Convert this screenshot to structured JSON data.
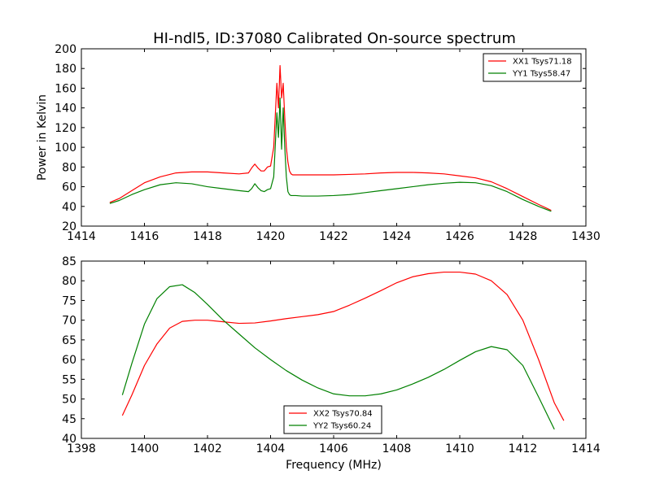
{
  "chart_data": [
    {
      "type": "line",
      "title": "HI-ndl5, ID:37080 Calibrated On-source spectrum",
      "xlabel": "",
      "ylabel": "Power in Kelvin",
      "xlim": [
        1414,
        1430
      ],
      "ylim": [
        20,
        200
      ],
      "xticks": [
        1414,
        1416,
        1418,
        1420,
        1422,
        1424,
        1426,
        1428,
        1430
      ],
      "yticks": [
        20,
        40,
        60,
        80,
        100,
        120,
        140,
        160,
        180,
        200
      ],
      "grid": false,
      "legend": "top-right",
      "series": [
        {
          "name": "XX1 Tsys71.18",
          "color": "#ff0000",
          "x": [
            1414.9,
            1415.2,
            1415.6,
            1416.0,
            1416.5,
            1417.0,
            1417.5,
            1418.0,
            1418.5,
            1419.0,
            1419.3,
            1419.4,
            1419.5,
            1419.6,
            1419.7,
            1419.8,
            1419.9,
            1420.0,
            1420.1,
            1420.2,
            1420.25,
            1420.3,
            1420.35,
            1420.4,
            1420.45,
            1420.5,
            1420.55,
            1420.6,
            1420.65,
            1420.7,
            1420.8,
            1421.0,
            1421.5,
            1422.0,
            1422.5,
            1423.0,
            1423.5,
            1424.0,
            1424.5,
            1425.0,
            1425.5,
            1426.0,
            1426.5,
            1427.0,
            1427.5,
            1428.0,
            1428.5,
            1428.9
          ],
          "y": [
            44,
            48,
            56,
            64,
            70,
            74,
            75,
            75,
            74,
            73,
            74,
            79,
            83,
            79,
            76,
            76,
            80,
            81,
            100,
            165,
            140,
            183,
            150,
            165,
            130,
            100,
            85,
            76,
            73,
            72,
            72,
            72,
            72,
            72,
            72.5,
            73,
            74,
            74.5,
            74.5,
            74,
            73,
            71,
            69,
            65,
            58,
            50,
            42,
            36
          ]
        },
        {
          "name": "YY1 Tsys58.47",
          "color": "#008000",
          "x": [
            1414.9,
            1415.2,
            1415.6,
            1416.0,
            1416.5,
            1417.0,
            1417.5,
            1418.0,
            1418.5,
            1419.0,
            1419.3,
            1419.4,
            1419.5,
            1419.6,
            1419.7,
            1419.8,
            1419.9,
            1420.0,
            1420.1,
            1420.2,
            1420.25,
            1420.3,
            1420.35,
            1420.4,
            1420.45,
            1420.5,
            1420.55,
            1420.6,
            1420.65,
            1420.7,
            1420.8,
            1421.0,
            1421.5,
            1422.0,
            1422.5,
            1423.0,
            1423.5,
            1424.0,
            1424.5,
            1425.0,
            1425.5,
            1426.0,
            1426.5,
            1427.0,
            1427.5,
            1428.0,
            1428.5,
            1428.9
          ],
          "y": [
            43,
            46,
            52,
            57,
            62,
            64,
            63,
            60,
            58,
            56,
            55,
            58,
            63,
            59,
            56,
            55,
            57,
            58,
            70,
            135,
            110,
            150,
            98,
            140,
            100,
            70,
            55,
            52,
            51,
            51,
            51,
            50.5,
            50.5,
            51,
            52,
            54,
            56,
            58,
            60,
            62,
            63.5,
            64.5,
            64,
            61,
            55,
            47,
            40,
            35
          ]
        }
      ]
    },
    {
      "type": "line",
      "title": "",
      "xlabel": "Frequency (MHz)",
      "ylabel": "",
      "xlim": [
        1398,
        1414
      ],
      "ylim": [
        40,
        85
      ],
      "xticks": [
        1398,
        1400,
        1402,
        1404,
        1406,
        1408,
        1410,
        1412,
        1414
      ],
      "yticks": [
        40,
        45,
        50,
        55,
        60,
        65,
        70,
        75,
        80,
        85
      ],
      "grid": false,
      "legend": "bottom-center",
      "series": [
        {
          "name": "XX2 Tsys70.84",
          "color": "#ff0000",
          "x": [
            1399.3,
            1399.6,
            1400.0,
            1400.4,
            1400.8,
            1401.2,
            1401.6,
            1402.0,
            1402.5,
            1403.0,
            1403.5,
            1404.0,
            1404.5,
            1405.0,
            1405.5,
            1406.0,
            1406.5,
            1407.0,
            1407.5,
            1408.0,
            1408.5,
            1409.0,
            1409.5,
            1410.0,
            1410.5,
            1411.0,
            1411.5,
            1412.0,
            1412.5,
            1413.0,
            1413.3
          ],
          "y": [
            45.8,
            51,
            58.5,
            64,
            68,
            69.7,
            70,
            70,
            69.6,
            69.2,
            69.3,
            69.8,
            70.4,
            70.9,
            71.4,
            72.2,
            73.8,
            75.6,
            77.5,
            79.5,
            81,
            81.8,
            82.2,
            82.2,
            81.7,
            80,
            76.5,
            70,
            60,
            49,
            44.5
          ]
        },
        {
          "name": "YY2 Tsys60.24",
          "color": "#008000",
          "x": [
            1399.3,
            1399.6,
            1400.0,
            1400.4,
            1400.8,
            1401.2,
            1401.6,
            1402.0,
            1402.5,
            1403.0,
            1403.5,
            1404.0,
            1404.5,
            1405.0,
            1405.5,
            1406.0,
            1406.5,
            1407.0,
            1407.5,
            1408.0,
            1408.5,
            1409.0,
            1409.5,
            1410.0,
            1410.5,
            1411.0,
            1411.5,
            1412.0,
            1412.5,
            1413.0
          ],
          "y": [
            51,
            59,
            69,
            75.5,
            78.5,
            79,
            77,
            74,
            70,
            66.5,
            63,
            60,
            57.2,
            54.8,
            52.8,
            51.3,
            50.8,
            50.8,
            51.3,
            52.3,
            53.8,
            55.5,
            57.5,
            59.8,
            62,
            63.3,
            62.5,
            58.5,
            50.5,
            42.3
          ]
        }
      ]
    }
  ]
}
